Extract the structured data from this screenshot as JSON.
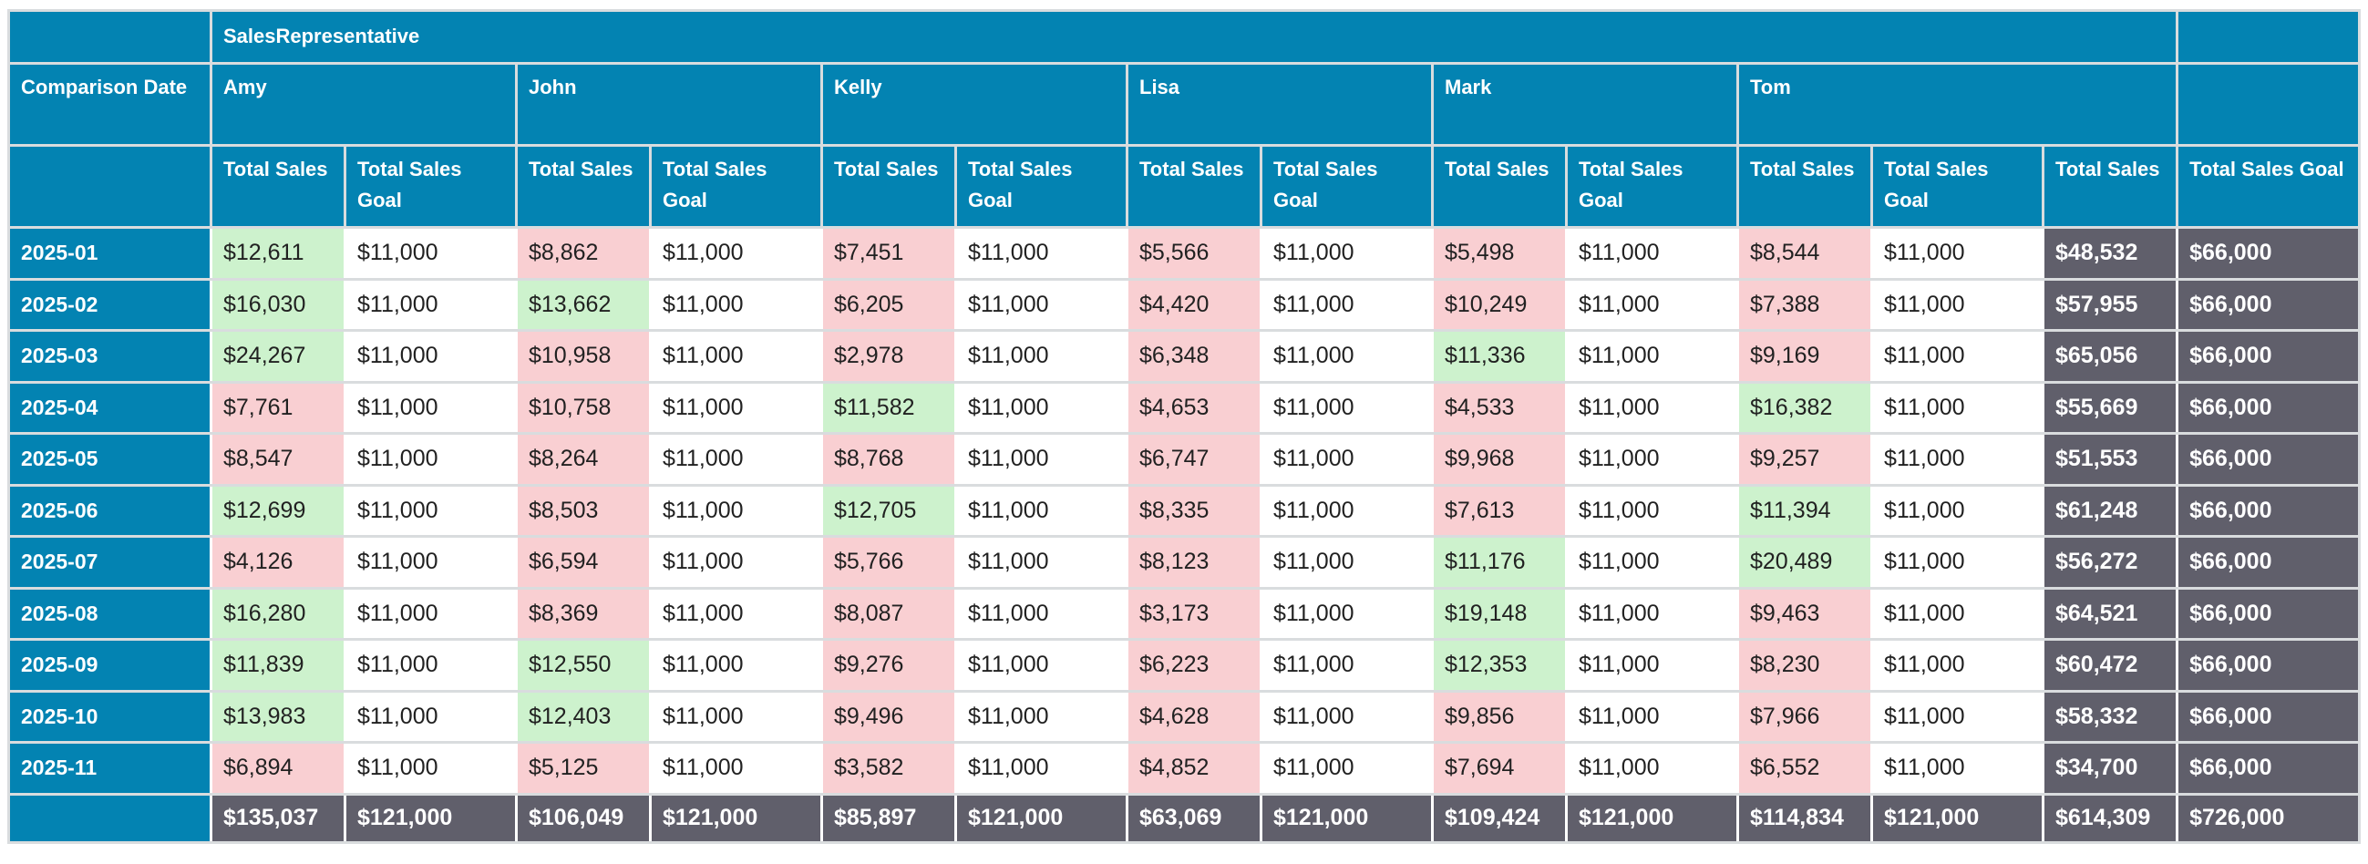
{
  "colors": {
    "header_teal": "#0383b2",
    "total_gray": "#605f6b",
    "above_goal_green": "#cdf2cd",
    "below_goal_pink": "#f9cfd2",
    "gridline_gray": "#d9dcde",
    "data_text": "#212121",
    "header_text": "#ffffff"
  },
  "table": {
    "column_field_label": "SalesRepresentative",
    "row_field_label": "Comparison Date",
    "sales_measure_label": "Total Sales",
    "goal_measure_label": "Total Sales Goal",
    "reps": [
      "Amy",
      "John",
      "Kelly",
      "Lisa",
      "Mark",
      "Tom"
    ],
    "monthly_goal": "$11,000",
    "row_goal_total": "$66,000",
    "rows": [
      {
        "date": "2025-01",
        "sales": [
          "$12,611",
          "$8,862",
          "$7,451",
          "$5,566",
          "$5,498",
          "$8,544"
        ],
        "status": [
          "above",
          "below",
          "below",
          "below",
          "below",
          "below"
        ],
        "total": "$48,532"
      },
      {
        "date": "2025-02",
        "sales": [
          "$16,030",
          "$13,662",
          "$6,205",
          "$4,420",
          "$10,249",
          "$7,388"
        ],
        "status": [
          "above",
          "above",
          "below",
          "below",
          "below",
          "below"
        ],
        "total": "$57,955"
      },
      {
        "date": "2025-03",
        "sales": [
          "$24,267",
          "$10,958",
          "$2,978",
          "$6,348",
          "$11,336",
          "$9,169"
        ],
        "status": [
          "above",
          "below",
          "below",
          "below",
          "above",
          "below"
        ],
        "total": "$65,056"
      },
      {
        "date": "2025-04",
        "sales": [
          "$7,761",
          "$10,758",
          "$11,582",
          "$4,653",
          "$4,533",
          "$16,382"
        ],
        "status": [
          "below",
          "below",
          "above",
          "below",
          "below",
          "above"
        ],
        "total": "$55,669"
      },
      {
        "date": "2025-05",
        "sales": [
          "$8,547",
          "$8,264",
          "$8,768",
          "$6,747",
          "$9,968",
          "$9,257"
        ],
        "status": [
          "below",
          "below",
          "below",
          "below",
          "below",
          "below"
        ],
        "total": "$51,553"
      },
      {
        "date": "2025-06",
        "sales": [
          "$12,699",
          "$8,503",
          "$12,705",
          "$8,335",
          "$7,613",
          "$11,394"
        ],
        "status": [
          "above",
          "below",
          "above",
          "below",
          "below",
          "above"
        ],
        "total": "$61,248"
      },
      {
        "date": "2025-07",
        "sales": [
          "$4,126",
          "$6,594",
          "$5,766",
          "$8,123",
          "$11,176",
          "$20,489"
        ],
        "status": [
          "below",
          "below",
          "below",
          "below",
          "above",
          "above"
        ],
        "total": "$56,272"
      },
      {
        "date": "2025-08",
        "sales": [
          "$16,280",
          "$8,369",
          "$8,087",
          "$3,173",
          "$19,148",
          "$9,463"
        ],
        "status": [
          "above",
          "below",
          "below",
          "below",
          "above",
          "below"
        ],
        "total": "$64,521"
      },
      {
        "date": "2025-09",
        "sales": [
          "$11,839",
          "$12,550",
          "$9,276",
          "$6,223",
          "$12,353",
          "$8,230"
        ],
        "status": [
          "above",
          "above",
          "below",
          "below",
          "above",
          "below"
        ],
        "total": "$60,472"
      },
      {
        "date": "2025-10",
        "sales": [
          "$13,983",
          "$12,403",
          "$9,496",
          "$4,628",
          "$9,856",
          "$7,966"
        ],
        "status": [
          "above",
          "above",
          "below",
          "below",
          "below",
          "below"
        ],
        "total": "$58,332"
      },
      {
        "date": "2025-11",
        "sales": [
          "$6,894",
          "$5,125",
          "$3,582",
          "$4,852",
          "$7,694",
          "$6,552"
        ],
        "status": [
          "below",
          "below",
          "below",
          "below",
          "below",
          "below"
        ],
        "total": "$34,700"
      }
    ],
    "footer": {
      "rep_sales_totals": [
        "$135,037",
        "$106,049",
        "$85,897",
        "$63,069",
        "$109,424",
        "$114,834"
      ],
      "rep_goal_total": "$121,000",
      "grand_sales_total": "$614,309",
      "grand_goal_total": "$726,000"
    }
  }
}
